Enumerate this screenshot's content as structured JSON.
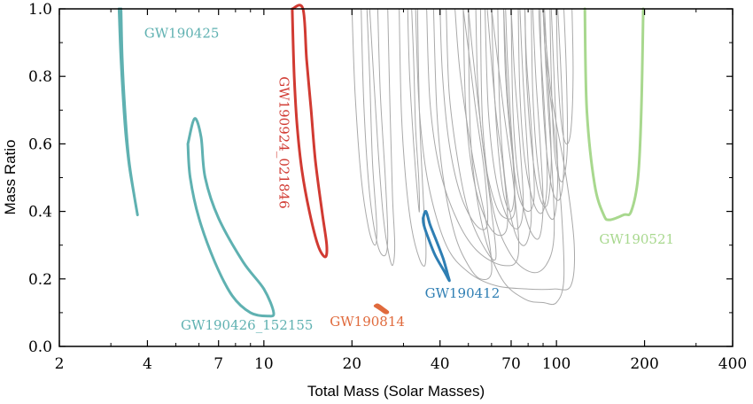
{
  "chart_data": {
    "type": "contour",
    "xlabel": "Total Mass (Solar Masses)",
    "ylabel": "Mass Ratio",
    "x_scale": "log",
    "xlim": [
      2,
      400
    ],
    "ylim": [
      0.0,
      1.0
    ],
    "x_ticks": [
      2,
      4,
      7,
      10,
      20,
      40,
      70,
      100,
      200,
      400
    ],
    "y_ticks": [
      0.0,
      0.2,
      0.4,
      0.6,
      0.8,
      1.0
    ],
    "y_tick_labels": [
      "0.0",
      "0.2",
      "0.4",
      "0.6",
      "0.8",
      "1.0"
    ],
    "grid": false,
    "colors": {
      "gray": "#a9a9a9",
      "teal": "#5fb1b1",
      "red": "#d13a32",
      "orange": "#e06a3c",
      "blue": "#2e7eb3",
      "green": "#a8d88e"
    },
    "highlighted": [
      {
        "name": "GW190425",
        "color": "#5fb1b1",
        "contour": [
          [
            3.2,
            1.0
          ],
          [
            3.25,
            0.85
          ],
          [
            3.35,
            0.66
          ],
          [
            3.45,
            0.55
          ],
          [
            3.55,
            0.48
          ],
          [
            3.7,
            0.39
          ],
          [
            3.6,
            0.45
          ],
          [
            3.45,
            0.56
          ],
          [
            3.35,
            0.7
          ],
          [
            3.28,
            0.85
          ],
          [
            3.25,
            1.0
          ]
        ]
      },
      {
        "name": "GW190426_152155",
        "color": "#5fb1b1",
        "contour": [
          [
            5.5,
            0.6
          ],
          [
            5.8,
            0.675
          ],
          [
            6.1,
            0.62
          ],
          [
            6.3,
            0.5
          ],
          [
            7.0,
            0.38
          ],
          [
            8.5,
            0.25
          ],
          [
            10.0,
            0.17
          ],
          [
            10.8,
            0.1
          ],
          [
            10.3,
            0.09
          ],
          [
            9.0,
            0.1
          ],
          [
            7.8,
            0.15
          ],
          [
            6.8,
            0.25
          ],
          [
            6.0,
            0.38
          ],
          [
            5.6,
            0.5
          ],
          [
            5.5,
            0.6
          ]
        ]
      },
      {
        "name": "GW190924_021846",
        "color": "#d13a32",
        "contour": [
          [
            12.5,
            1.0
          ],
          [
            13.6,
            1.0
          ],
          [
            14.0,
            0.85
          ],
          [
            14.5,
            0.7
          ],
          [
            15.0,
            0.55
          ],
          [
            15.8,
            0.4
          ],
          [
            16.4,
            0.3
          ],
          [
            16.2,
            0.265
          ],
          [
            15.3,
            0.3
          ],
          [
            14.3,
            0.4
          ],
          [
            13.5,
            0.52
          ],
          [
            13.0,
            0.65
          ],
          [
            12.7,
            0.8
          ],
          [
            12.5,
            1.0
          ]
        ]
      },
      {
        "name": "GW190814",
        "color": "#e06a3c",
        "contour": [
          [
            24.0,
            0.12
          ],
          [
            25.0,
            0.11
          ],
          [
            26.0,
            0.1
          ],
          [
            26.5,
            0.102
          ],
          [
            25.5,
            0.113
          ],
          [
            24.5,
            0.123
          ],
          [
            24.0,
            0.12
          ]
        ]
      },
      {
        "name": "GW190412",
        "color": "#2e7eb3",
        "contour": [
          [
            35.0,
            0.38
          ],
          [
            35.8,
            0.4
          ],
          [
            37.0,
            0.36
          ],
          [
            39.0,
            0.31
          ],
          [
            41.0,
            0.26
          ],
          [
            42.6,
            0.21
          ],
          [
            43.0,
            0.195
          ],
          [
            41.5,
            0.22
          ],
          [
            38.5,
            0.27
          ],
          [
            36.5,
            0.32
          ],
          [
            35.2,
            0.36
          ],
          [
            35.0,
            0.38
          ]
        ]
      },
      {
        "name": "GW190521",
        "color": "#a8d88e",
        "contour": [
          [
            125.0,
            1.0
          ],
          [
            127.0,
            0.7
          ],
          [
            135.0,
            0.48
          ],
          [
            145.0,
            0.39
          ],
          [
            152.0,
            0.375
          ],
          [
            170.0,
            0.39
          ],
          [
            180.0,
            0.4
          ],
          [
            190.0,
            0.5
          ],
          [
            195.0,
            0.7
          ],
          [
            198.0,
            1.0
          ]
        ]
      }
    ],
    "background_events": [
      [
        [
          23.0,
          1.0
        ],
        [
          24.5,
          0.6
        ],
        [
          25.5,
          0.4
        ],
        [
          26.5,
          0.29
        ],
        [
          27.5,
          0.24
        ],
        [
          28.0,
          0.3
        ],
        [
          27.5,
          0.45
        ],
        [
          27.0,
          0.7
        ],
        [
          26.5,
          1.0
        ]
      ],
      [
        [
          21.5,
          1.0
        ],
        [
          22.0,
          0.7
        ],
        [
          23.0,
          0.45
        ],
        [
          24.5,
          0.3
        ],
        [
          26.0,
          0.27
        ],
        [
          26.5,
          0.33
        ],
        [
          26.0,
          0.5
        ],
        [
          25.0,
          0.75
        ],
        [
          24.5,
          1.0
        ]
      ],
      [
        [
          20.0,
          1.0
        ],
        [
          20.5,
          0.75
        ],
        [
          21.5,
          0.5
        ],
        [
          22.8,
          0.35
        ],
        [
          24.0,
          0.3
        ],
        [
          24.3,
          0.36
        ],
        [
          23.5,
          0.55
        ],
        [
          23.0,
          0.8
        ],
        [
          22.5,
          1.0
        ]
      ],
      [
        [
          29.0,
          1.0
        ],
        [
          29.5,
          0.7
        ],
        [
          30.5,
          0.5
        ],
        [
          32.0,
          0.35
        ],
        [
          34.0,
          0.26
        ],
        [
          35.5,
          0.24
        ],
        [
          35.8,
          0.3
        ],
        [
          35.0,
          0.45
        ],
        [
          34.0,
          0.7
        ],
        [
          33.5,
          1.0
        ]
      ],
      [
        [
          31.0,
          1.0
        ],
        [
          31.5,
          0.8
        ],
        [
          32.5,
          0.6
        ],
        [
          33.5,
          0.45
        ],
        [
          34.0,
          0.4
        ],
        [
          33.8,
          0.5
        ],
        [
          33.0,
          0.65
        ],
        [
          32.5,
          0.85
        ],
        [
          32.0,
          1.0
        ]
      ],
      [
        [
          38.0,
          1.0
        ],
        [
          39.0,
          0.7
        ],
        [
          41.0,
          0.5
        ],
        [
          45.0,
          0.33
        ],
        [
          50.0,
          0.24
        ],
        [
          55.0,
          0.2
        ],
        [
          60.0,
          0.22
        ],
        [
          58.0,
          0.35
        ],
        [
          52.0,
          0.55
        ],
        [
          47.0,
          0.8
        ],
        [
          45.0,
          1.0
        ]
      ],
      [
        [
          42.0,
          1.0
        ],
        [
          43.0,
          0.75
        ],
        [
          46.0,
          0.55
        ],
        [
          50.0,
          0.4
        ],
        [
          56.0,
          0.3
        ],
        [
          62.0,
          0.26
        ],
        [
          60.0,
          0.4
        ],
        [
          56.0,
          0.6
        ],
        [
          52.0,
          0.85
        ],
        [
          50.0,
          1.0
        ]
      ],
      [
        [
          48.0,
          1.0
        ],
        [
          49.0,
          0.7
        ],
        [
          52.0,
          0.5
        ],
        [
          57.0,
          0.38
        ],
        [
          63.0,
          0.33
        ],
        [
          68.0,
          0.36
        ],
        [
          66.0,
          0.52
        ],
        [
          62.0,
          0.7
        ],
        [
          58.0,
          1.0
        ]
      ],
      [
        [
          53.0,
          1.0
        ],
        [
          54.0,
          0.75
        ],
        [
          57.0,
          0.55
        ],
        [
          62.0,
          0.42
        ],
        [
          67.0,
          0.38
        ],
        [
          72.0,
          0.4
        ],
        [
          71.0,
          0.55
        ],
        [
          68.0,
          0.75
        ],
        [
          66.0,
          1.0
        ]
      ],
      [
        [
          57.0,
          1.0
        ],
        [
          58.5,
          0.7
        ],
        [
          62.0,
          0.5
        ],
        [
          68.0,
          0.38
        ],
        [
          74.0,
          0.35
        ],
        [
          77.0,
          0.42
        ],
        [
          75.0,
          0.6
        ],
        [
          72.0,
          0.8
        ],
        [
          70.0,
          1.0
        ]
      ],
      [
        [
          60.0,
          1.0
        ],
        [
          61.0,
          0.8
        ],
        [
          63.0,
          0.6
        ],
        [
          66.0,
          0.45
        ],
        [
          70.0,
          0.4
        ],
        [
          72.0,
          0.48
        ],
        [
          70.0,
          0.65
        ],
        [
          68.0,
          0.85
        ],
        [
          67.0,
          1.0
        ]
      ],
      [
        [
          63.0,
          1.0
        ],
        [
          64.0,
          0.7
        ],
        [
          67.0,
          0.48
        ],
        [
          72.0,
          0.34
        ],
        [
          78.0,
          0.3
        ],
        [
          82.0,
          0.38
        ],
        [
          80.0,
          0.55
        ],
        [
          77.0,
          0.78
        ],
        [
          75.0,
          1.0
        ]
      ],
      [
        [
          66.0,
          1.0
        ],
        [
          67.0,
          0.8
        ],
        [
          70.0,
          0.6
        ],
        [
          74.0,
          0.45
        ],
        [
          80.0,
          0.4
        ],
        [
          84.0,
          0.45
        ],
        [
          82.0,
          0.65
        ],
        [
          79.0,
          0.85
        ],
        [
          78.0,
          1.0
        ]
      ],
      [
        [
          70.0,
          1.0
        ],
        [
          71.0,
          0.7
        ],
        [
          74.0,
          0.5
        ],
        [
          80.0,
          0.36
        ],
        [
          87.0,
          0.32
        ],
        [
          90.0,
          0.42
        ],
        [
          88.0,
          0.6
        ],
        [
          85.0,
          0.8
        ],
        [
          83.0,
          1.0
        ]
      ],
      [
        [
          74.0,
          1.0
        ],
        [
          75.0,
          0.75
        ],
        [
          78.0,
          0.55
        ],
        [
          84.0,
          0.42
        ],
        [
          90.0,
          0.4
        ],
        [
          93.0,
          0.5
        ],
        [
          91.0,
          0.7
        ],
        [
          88.0,
          0.9
        ],
        [
          87.0,
          1.0
        ]
      ],
      [
        [
          78.0,
          1.0
        ],
        [
          79.0,
          0.8
        ],
        [
          82.0,
          0.6
        ],
        [
          87.0,
          0.45
        ],
        [
          93.0,
          0.42
        ],
        [
          96.0,
          0.55
        ],
        [
          94.0,
          0.75
        ],
        [
          91.0,
          1.0
        ]
      ],
      [
        [
          82.0,
          1.0
        ],
        [
          83.0,
          0.75
        ],
        [
          86.0,
          0.55
        ],
        [
          91.0,
          0.42
        ],
        [
          98.0,
          0.38
        ],
        [
          101.0,
          0.5
        ],
        [
          99.0,
          0.72
        ],
        [
          96.0,
          1.0
        ]
      ],
      [
        [
          88.0,
          1.0
        ],
        [
          89.0,
          0.8
        ],
        [
          92.0,
          0.6
        ],
        [
          97.0,
          0.46
        ],
        [
          103.0,
          0.44
        ],
        [
          106.0,
          0.55
        ],
        [
          104.0,
          0.78
        ],
        [
          101.0,
          1.0
        ]
      ],
      [
        [
          50.0,
          1.0
        ],
        [
          51.0,
          0.6
        ],
        [
          56.0,
          0.35
        ],
        [
          65.0,
          0.2
        ],
        [
          78.0,
          0.14
        ],
        [
          90.0,
          0.13
        ],
        [
          100.0,
          0.13
        ],
        [
          106.0,
          0.2
        ],
        [
          104.0,
          0.4
        ],
        [
          98.0,
          0.65
        ],
        [
          92.0,
          0.85
        ],
        [
          90.0,
          1.0
        ]
      ],
      [
        [
          55.0,
          1.0
        ],
        [
          56.0,
          0.65
        ],
        [
          61.0,
          0.4
        ],
        [
          70.0,
          0.27
        ],
        [
          82.0,
          0.22
        ],
        [
          92.0,
          0.24
        ],
        [
          98.0,
          0.32
        ],
        [
          97.0,
          0.5
        ],
        [
          93.0,
          0.75
        ],
        [
          90.0,
          1.0
        ]
      ],
      [
        [
          33.0,
          1.0
        ],
        [
          34.0,
          0.7
        ],
        [
          36.5,
          0.48
        ],
        [
          42.0,
          0.3
        ],
        [
          50.0,
          0.22
        ],
        [
          62.0,
          0.18
        ],
        [
          80.0,
          0.17
        ],
        [
          98.0,
          0.17
        ],
        [
          112.0,
          0.18
        ],
        [
          115.0,
          0.3
        ],
        [
          108.0,
          0.5
        ],
        [
          96.0,
          0.75
        ],
        [
          90.0,
          1.0
        ]
      ],
      [
        [
          36.0,
          1.0
        ],
        [
          37.0,
          0.72
        ],
        [
          40.0,
          0.52
        ],
        [
          46.0,
          0.37
        ],
        [
          54.0,
          0.28
        ],
        [
          66.0,
          0.24
        ],
        [
          74.0,
          0.27
        ],
        [
          72.0,
          0.45
        ],
        [
          66.0,
          0.7
        ],
        [
          60.0,
          1.0
        ]
      ],
      [
        [
          95.0,
          1.0
        ],
        [
          96.0,
          0.8
        ],
        [
          98.0,
          0.6
        ],
        [
          102.0,
          0.5
        ],
        [
          106.0,
          0.5
        ],
        [
          109.0,
          0.6
        ],
        [
          108.0,
          0.82
        ],
        [
          106.0,
          1.0
        ]
      ],
      [
        [
          100.0,
          1.0
        ],
        [
          101.0,
          0.82
        ],
        [
          104.0,
          0.66
        ],
        [
          108.0,
          0.6
        ],
        [
          112.0,
          0.64
        ],
        [
          114.0,
          0.8
        ],
        [
          113.0,
          1.0
        ]
      ],
      [
        [
          40.0,
          1.0
        ],
        [
          40.8,
          0.8
        ],
        [
          43.0,
          0.6
        ],
        [
          47.0,
          0.45
        ],
        [
          53.0,
          0.36
        ],
        [
          58.0,
          0.36
        ],
        [
          57.0,
          0.5
        ],
        [
          53.0,
          0.7
        ],
        [
          50.0,
          0.88
        ],
        [
          48.0,
          1.0
        ]
      ]
    ],
    "labels": [
      {
        "text": "GW190425",
        "color": "#5fb1b1",
        "anchor": [
          3.9,
          0.915
        ],
        "rotate": 0
      },
      {
        "text": "GW190426_152155",
        "color": "#5fb1b1",
        "anchor": [
          5.2,
          0.05
        ],
        "rotate": 0
      },
      {
        "text": "GW190924_021846",
        "color": "#d13a32",
        "anchor": [
          11.3,
          0.8
        ],
        "rotate": 90
      },
      {
        "text": "GW190814",
        "color": "#e06a3c",
        "anchor": [
          16.8,
          0.06
        ],
        "rotate": 0
      },
      {
        "text": "GW190412",
        "color": "#2e7eb3",
        "anchor": [
          35.5,
          0.145
        ],
        "rotate": 0
      },
      {
        "text": "GW190521",
        "color": "#a8d88e",
        "anchor": [
          140.0,
          0.305
        ],
        "rotate": 0
      }
    ]
  }
}
